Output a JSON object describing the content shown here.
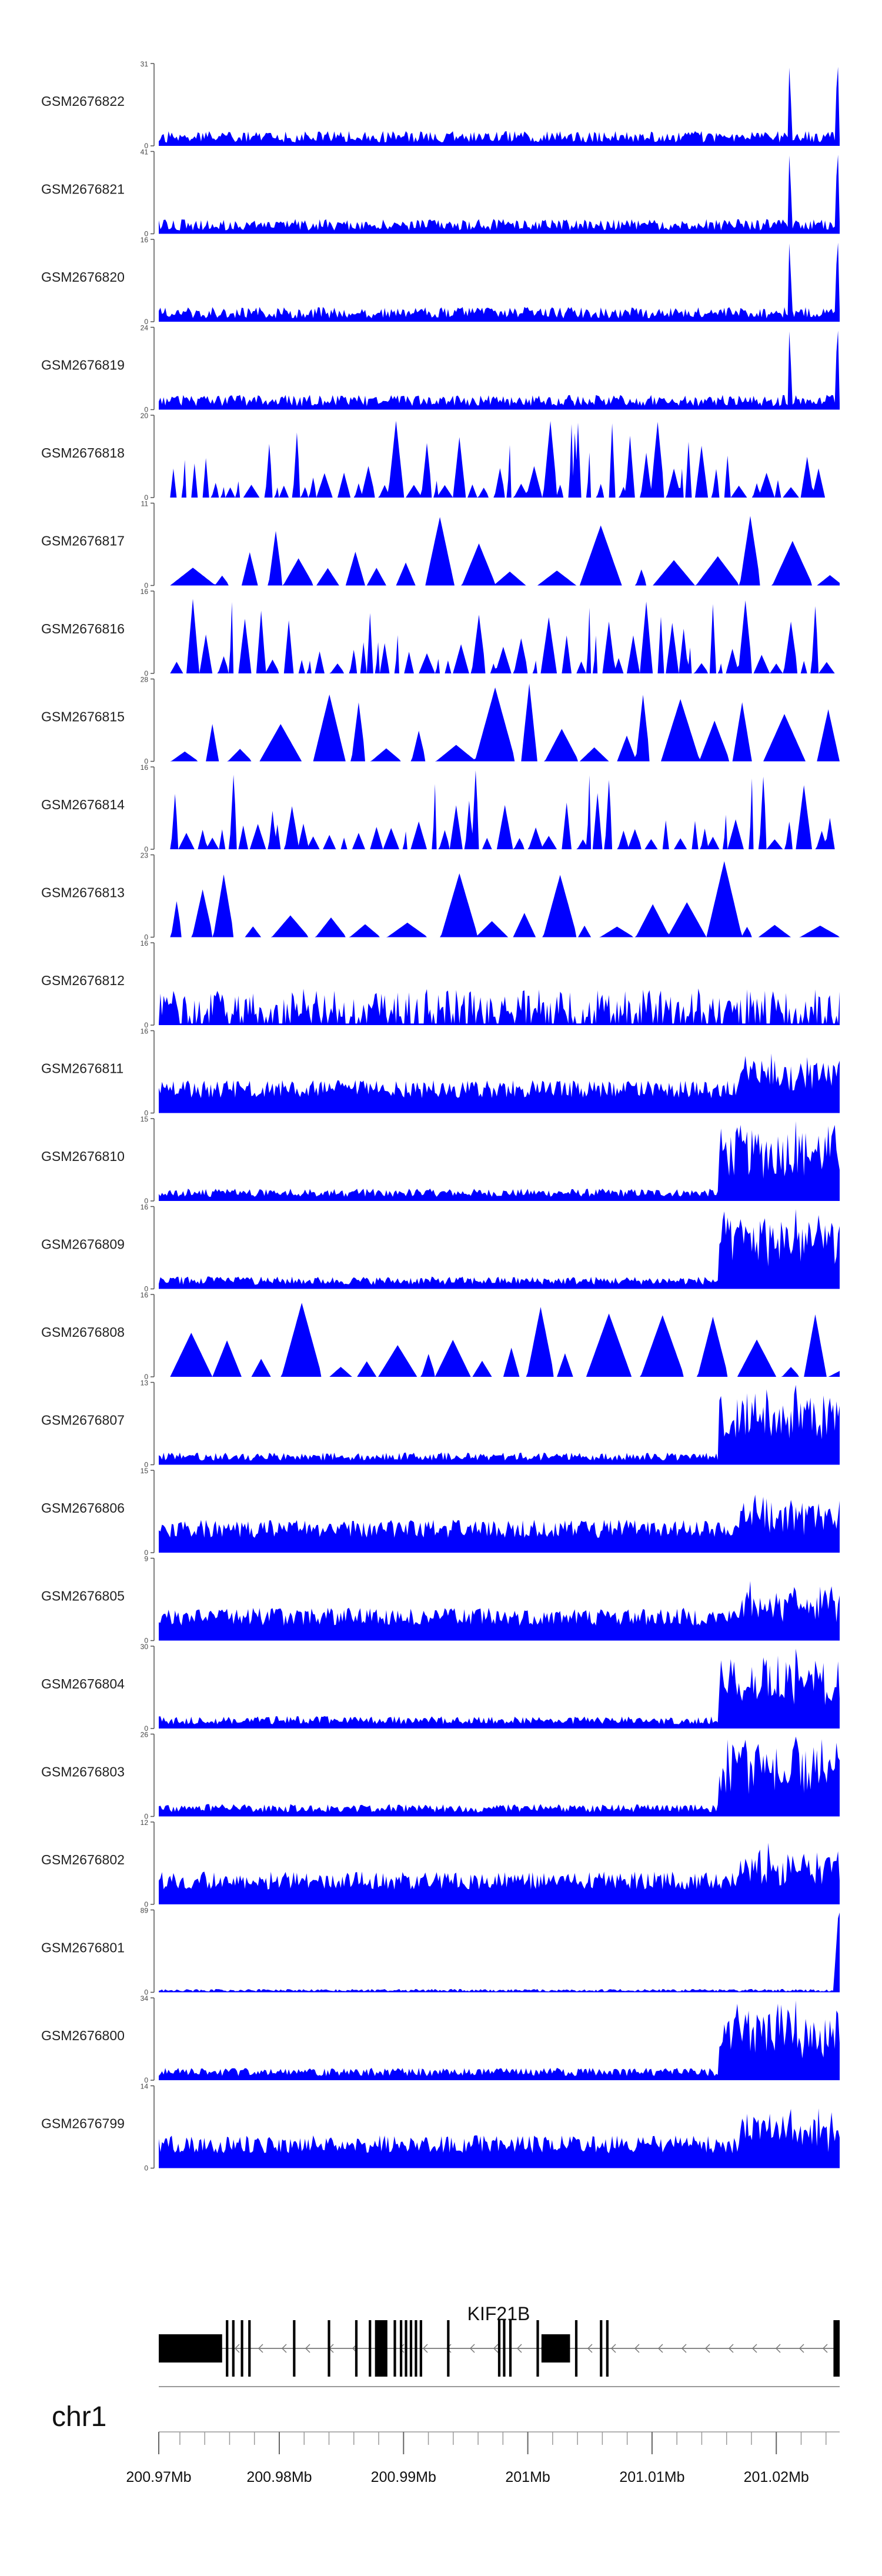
{
  "chart_data": {
    "type": "area",
    "tracks": [
      {
        "name": "GSM2676822",
        "ymax": 31,
        "ymin": 0,
        "profile": "promoter",
        "seed": 11
      },
      {
        "name": "GSM2676821",
        "ymax": 41,
        "ymin": 0,
        "profile": "promoter",
        "seed": 12
      },
      {
        "name": "GSM2676820",
        "ymax": 16,
        "ymin": 0,
        "profile": "promoter",
        "seed": 13
      },
      {
        "name": "GSM2676819",
        "ymax": 24,
        "ymin": 0,
        "profile": "promoter",
        "seed": 14
      },
      {
        "name": "GSM2676818",
        "ymax": 20,
        "ymin": 0,
        "profile": "sparse",
        "seed": 15
      },
      {
        "name": "GSM2676817",
        "ymax": 11,
        "ymin": 0,
        "profile": "triangles",
        "seed": 16
      },
      {
        "name": "GSM2676816",
        "ymax": 16,
        "ymin": 0,
        "profile": "sparse",
        "seed": 17
      },
      {
        "name": "GSM2676815",
        "ymax": 28,
        "ymin": 0,
        "profile": "triangles",
        "seed": 18
      },
      {
        "name": "GSM2676814",
        "ymax": 16,
        "ymin": 0,
        "profile": "sparse",
        "seed": 19
      },
      {
        "name": "GSM2676813",
        "ymax": 23,
        "ymin": 0,
        "profile": "triangles",
        "seed": 20
      },
      {
        "name": "GSM2676812",
        "ymax": 16,
        "ymin": 0,
        "profile": "medium",
        "seed": 21
      },
      {
        "name": "GSM2676811",
        "ymax": 16,
        "ymin": 0,
        "profile": "dense",
        "seed": 22
      },
      {
        "name": "GSM2676810",
        "ymax": 15,
        "ymin": 0,
        "profile": "rising",
        "seed": 23
      },
      {
        "name": "GSM2676809",
        "ymax": 16,
        "ymin": 0,
        "profile": "rising",
        "seed": 24
      },
      {
        "name": "GSM2676808",
        "ymax": 16,
        "ymin": 0,
        "profile": "triangles",
        "seed": 25
      },
      {
        "name": "GSM2676807",
        "ymax": 13,
        "ymin": 0,
        "profile": "rising",
        "seed": 26
      },
      {
        "name": "GSM2676806",
        "ymax": 15,
        "ymin": 0,
        "profile": "dense",
        "seed": 27
      },
      {
        "name": "GSM2676805",
        "ymax": 9,
        "ymin": 0,
        "profile": "dense",
        "seed": 28
      },
      {
        "name": "GSM2676804",
        "ymax": 30,
        "ymin": 0,
        "profile": "rising",
        "seed": 29
      },
      {
        "name": "GSM2676803",
        "ymax": 26,
        "ymin": 0,
        "profile": "rising",
        "seed": 30
      },
      {
        "name": "GSM2676802",
        "ymax": 12,
        "ymin": 0,
        "profile": "dense",
        "seed": 31
      },
      {
        "name": "GSM2676801",
        "ymax": 89,
        "ymin": 0,
        "profile": "end-peak",
        "seed": 32
      },
      {
        "name": "GSM2676800",
        "ymax": 34,
        "ymin": 0,
        "profile": "rising",
        "seed": 33
      },
      {
        "name": "GSM2676799",
        "ymax": 14,
        "ymin": 0,
        "profile": "dense",
        "seed": 34
      }
    ],
    "fill_color": "#0000ff",
    "x_range_bp": [
      200970300,
      201025100
    ],
    "x_axis": {
      "label": "chr1",
      "tick_values": [
        200970000,
        200980000,
        200990000,
        201000000,
        201010000,
        201020000
      ],
      "tick_labels": [
        "200.97Mb",
        "200.98Mb",
        "200.99Mb",
        "201Mb",
        "201.01Mb",
        "201.02Mb"
      ],
      "minor_tick_step": 2000
    },
    "gene": {
      "name": "KIF21B",
      "strand": "-",
      "start": 200970300,
      "end": 201025100,
      "exons": [
        [
          200970300,
          200975400
        ],
        [
          200975700,
          200975900
        ],
        [
          200976200,
          200976400
        ],
        [
          200976900,
          200977100
        ],
        [
          200977500,
          200977700
        ],
        [
          200981100,
          200981300
        ],
        [
          200983900,
          200984100
        ],
        [
          200986100,
          200986300
        ],
        [
          200987200,
          200987400
        ],
        [
          200987700,
          200988700
        ],
        [
          200989200,
          200989400
        ],
        [
          200989700,
          200989900
        ],
        [
          200990100,
          200990300
        ],
        [
          200990500,
          200990700
        ],
        [
          200990900,
          200991100
        ],
        [
          200991300,
          200991500
        ],
        [
          200993500,
          200993700
        ],
        [
          200997600,
          200997800
        ],
        [
          200998000,
          200998200
        ],
        [
          200998500,
          200998700
        ],
        [
          201000700,
          201000900
        ],
        [
          201001100,
          201003400
        ],
        [
          201003800,
          201004000
        ],
        [
          201005800,
          201006000
        ],
        [
          201006300,
          201006500
        ],
        [
          201024600,
          201025100
        ]
      ]
    },
    "grid": false
  }
}
